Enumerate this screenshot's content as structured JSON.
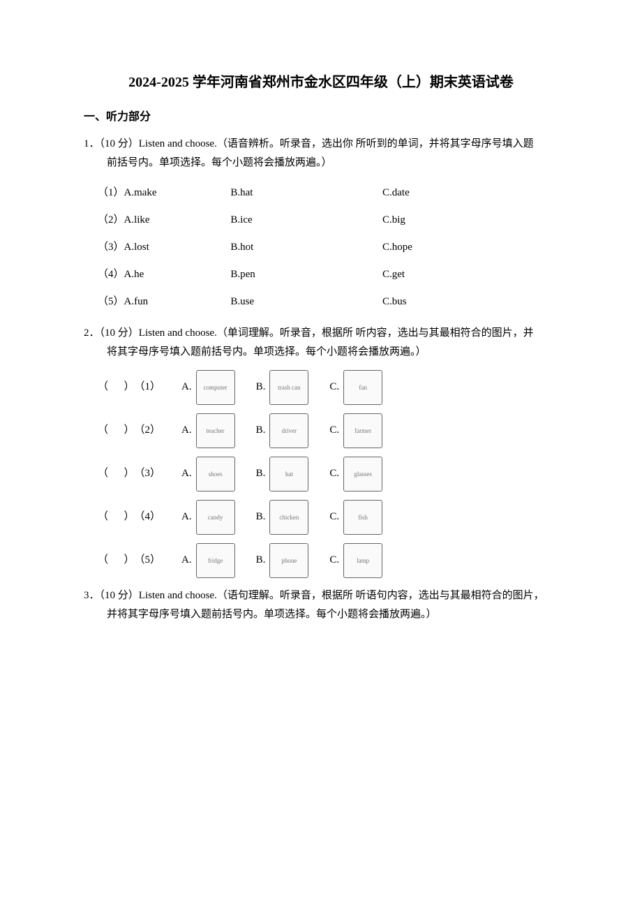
{
  "title": "2024-2025 学年河南省郑州市金水区四年级（上）期末英语试卷",
  "section1": "一、听力部分",
  "q1": {
    "number": "1．",
    "points": "（10 分）",
    "intro_a": "Listen and choose.（语音辨析。听录音，选出你 所听到的单词，并将其字母序号填入题",
    "intro_b": "前括号内。单项选择。每个小题将会播放两遍。）",
    "rows": [
      {
        "n": "（1）",
        "a": "A.make",
        "b": "B.hat",
        "c": "C.date"
      },
      {
        "n": "（2）",
        "a": "A.like",
        "b": "B.ice",
        "c": "C.big"
      },
      {
        "n": "（3）",
        "a": "A.lost",
        "b": "B.hot",
        "c": "C.hope"
      },
      {
        "n": "（4）",
        "a": "A.he",
        "b": "B.pen",
        "c": "C.get"
      },
      {
        "n": "（5）",
        "a": "A.fun",
        "b": "B.use",
        "c": "C.bus"
      }
    ]
  },
  "q2": {
    "number": "2．",
    "points": "（10 分）",
    "intro_a": "Listen and choose.（单词理解。听录音，根据所 听内容，选出与其最相符合的图片，并",
    "intro_b": "将其字母序号填入题前括号内。单项选择。每个小题将会播放两遍。）",
    "rows": [
      {
        "idx": "（1）",
        "a": "computer",
        "b": "trash can",
        "c": "fan"
      },
      {
        "idx": "（2）",
        "a": "teacher",
        "b": "driver",
        "c": "farmer"
      },
      {
        "idx": "（3）",
        "a": "shoes",
        "b": "hat",
        "c": "glasses"
      },
      {
        "idx": "（4）",
        "a": "candy",
        "b": "chicken",
        "c": "fish"
      },
      {
        "idx": "（5）",
        "a": "fridge",
        "b": "phone",
        "c": "lamp"
      }
    ],
    "paren_open": "（",
    "paren_close": "）",
    "labels": {
      "a": "A.",
      "b": "B.",
      "c": "C."
    }
  },
  "q3": {
    "number": "3．",
    "points": "（10 分）",
    "intro_a": "Listen and choose.（语句理解。听录音，根据所 听语句内容，选出与其最相符合的图片，",
    "intro_b": "并将其字母序号填入题前括号内。单项选择。每个小题将会播放两遍。）"
  }
}
